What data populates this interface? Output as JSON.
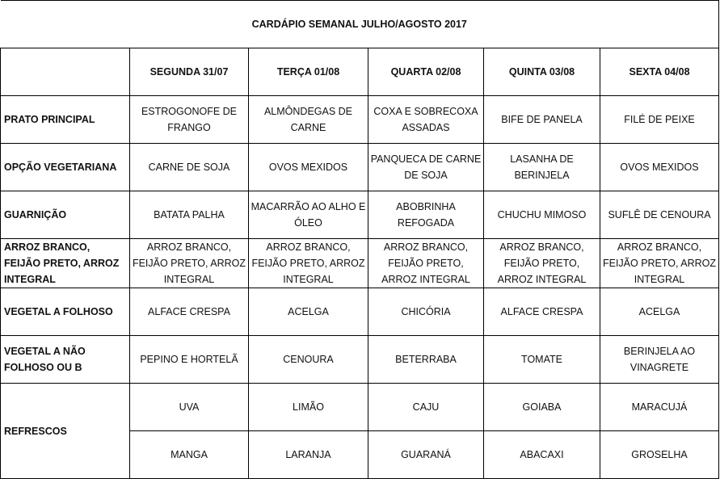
{
  "title": "CARDÁPIO SEMANAL JULHO/AGOSTO 2017",
  "days": [
    "SEGUNDA   31/07",
    "TERÇA 01/08",
    "QUARTA 02/08",
    "QUINTA 03/08",
    "SEXTA 04/08"
  ],
  "rows": [
    {
      "label": "PRATO PRINCIPAL",
      "cells": [
        "ESTROGONOFE DE FRANGO",
        "ALMÔNDEGAS DE CARNE",
        "COXA E SOBRECOXA ASSADAS",
        "BIFE DE PANELA",
        "FILÉ DE PEIXE"
      ]
    },
    {
      "label": "OPÇÃO VEGETARIANA",
      "cells": [
        "CARNE DE SOJA",
        "OVOS MEXIDOS",
        "PANQUECA DE CARNE DE SOJA",
        "LASANHA DE BERINJELA",
        "OVOS MEXIDOS"
      ]
    },
    {
      "label": "GUARNIÇÃO",
      "cells": [
        "BATATA PALHA",
        "MACARRÃO AO ALHO E ÓLEO",
        "ABOBRINHA REFOGADA",
        "CHUCHU MIMOSO",
        "SUFLÊ DE CENOURA"
      ]
    },
    {
      "label": "ARROZ BRANCO, FEIJÃO PRETO, ARROZ INTEGRAL",
      "cells": [
        "ARROZ BRANCO, FEIJÃO PRETO, ARROZ INTEGRAL",
        "ARROZ BRANCO, FEIJÃO PRETO, ARROZ INTEGRAL",
        "ARROZ BRANCO, FEIJÃO PRETO, ARROZ INTEGRAL",
        "ARROZ BRANCO, FEIJÃO PRETO, ARROZ INTEGRAL",
        "ARROZ BRANCO, FEIJÃO PRETO, ARROZ INTEGRAL"
      ]
    },
    {
      "label": "VEGETAL A FOLHOSO",
      "cells": [
        "ALFACE CRESPA",
        "ACELGA",
        "CHICÓRIA",
        "ALFACE CRESPA",
        "ACELGA"
      ]
    },
    {
      "label": "VEGETAL A NÃO FOLHOSO OU B",
      "cells": [
        "PEPINO E HORTELÃ",
        "CENOURA",
        "BETERRABA",
        "TOMATE",
        "BERINJELA AO VINAGRETE"
      ]
    }
  ],
  "refrescos": {
    "label": "REFRESCOS",
    "rows": [
      [
        "UVA",
        "LIMÃO",
        "CAJU",
        "GOIABA",
        "MARACUJÁ"
      ],
      [
        "MANGA",
        "LARANJA",
        "GUARANÁ",
        "ABACAXI",
        "GROSELHA"
      ]
    ]
  }
}
